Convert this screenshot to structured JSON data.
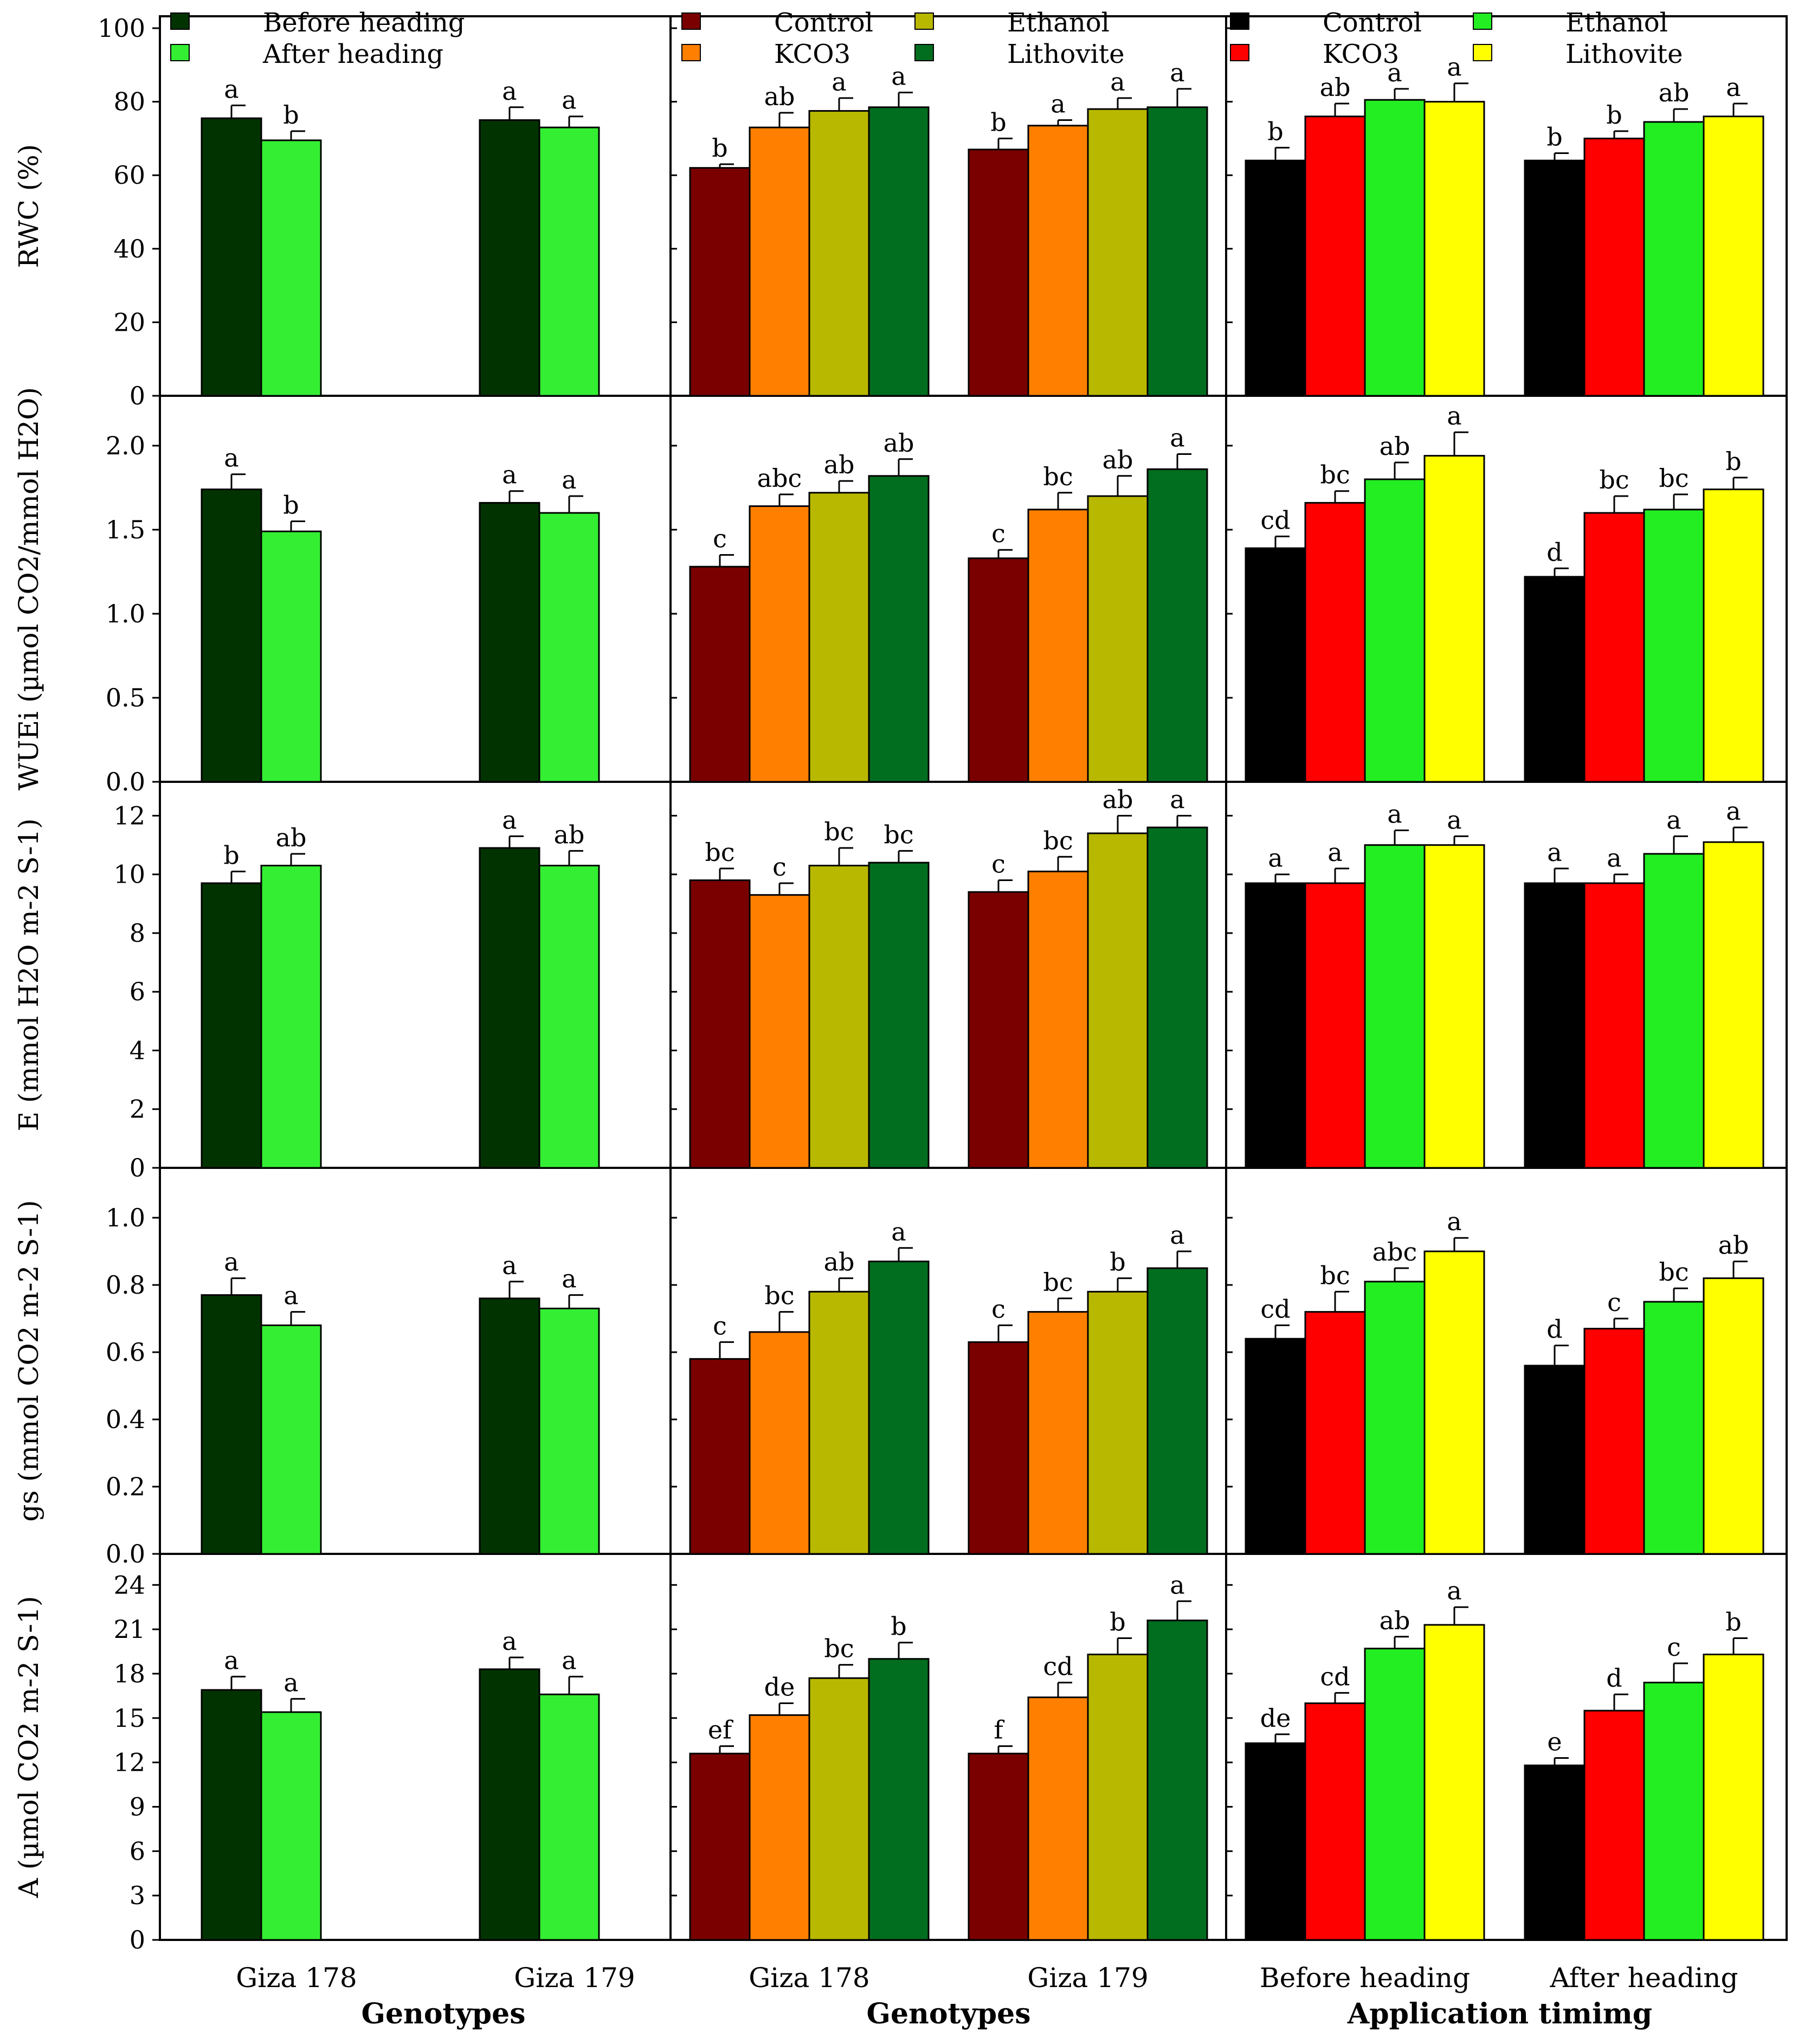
{
  "colors": {
    "before_heading": "#003300",
    "after_heading": "#33ee33",
    "trt_control": "#7a0000",
    "trt_kco3": "#ff8000",
    "trt_ethanol": "#b8b800",
    "trt_lithovite": "#006e1e",
    "time_control": "#000000",
    "time_kco3": "#ff0000",
    "time_ethanol": "#22ee22",
    "time_lithovite": "#ffff00"
  },
  "legends": {
    "col1": [
      "Before heading",
      "After heading"
    ],
    "col2": [
      "Control",
      "Ethanol",
      "KCO3",
      "Lithovite"
    ],
    "col3": [
      "Control",
      "Ethanol",
      "KCO3",
      "Lithovite"
    ]
  },
  "x_axis": {
    "col1": {
      "categories": [
        "Giza 178",
        "Giza 179"
      ],
      "title": "Genotypes"
    },
    "col2": {
      "categories": [
        "Giza 178",
        "Giza 179"
      ],
      "title": "Genotypes"
    },
    "col3": {
      "categories": [
        "Before heading",
        "After heading"
      ],
      "title": "Application timimg"
    }
  },
  "chart_data": [
    {
      "type": "bar",
      "metric": "RWC",
      "ylabel": "RWC (%)",
      "ylim": [
        0,
        100
      ],
      "yticks": [
        "0",
        "20",
        "40",
        "60",
        "80",
        "100"
      ],
      "groups": [
        {
          "x": "Giza 178",
          "values": [
            75.5,
            69.5
          ],
          "errors": [
            3.5,
            2.5
          ],
          "letters": [
            "a",
            "b"
          ]
        },
        {
          "x": "Giza 179",
          "values": [
            75.0,
            73.0
          ],
          "errors": [
            3.5,
            3.0
          ],
          "letters": [
            "a",
            "a"
          ]
        },
        {
          "x": "Giza 178",
          "values": [
            62.0,
            73.0,
            77.5,
            78.5
          ],
          "errors": [
            1.0,
            4.0,
            3.5,
            4.0
          ],
          "letters": [
            "b",
            "ab",
            "a",
            "a"
          ]
        },
        {
          "x": "Giza 179",
          "values": [
            67.0,
            73.5,
            78.0,
            78.5
          ],
          "errors": [
            3.0,
            1.5,
            3.0,
            5.0
          ],
          "letters": [
            "b",
            "a",
            "a",
            "a"
          ]
        },
        {
          "x": "Before heading",
          "values": [
            64.0,
            76.0,
            80.5,
            80.0
          ],
          "errors": [
            3.5,
            3.5,
            3.0,
            5.0
          ],
          "letters": [
            "b",
            "ab",
            "a",
            "a"
          ]
        },
        {
          "x": "After heading",
          "values": [
            64.0,
            70.0,
            74.5,
            76.0
          ],
          "errors": [
            2.0,
            2.0,
            3.5,
            3.5
          ],
          "letters": [
            "b",
            "b",
            "ab",
            "a"
          ]
        }
      ]
    },
    {
      "type": "bar",
      "metric": "WUEi",
      "ylabel": "WUEi (µmol CO2/mmol H2O)",
      "ylim": [
        0,
        2.2
      ],
      "yticks": [
        "0.0",
        "0.5",
        "1.0",
        "1.5",
        "2.0"
      ],
      "groups": [
        {
          "x": "Giza 178",
          "values": [
            1.74,
            1.49
          ],
          "errors": [
            0.09,
            0.06
          ],
          "letters": [
            "a",
            "b"
          ]
        },
        {
          "x": "Giza 179",
          "values": [
            1.66,
            1.6
          ],
          "errors": [
            0.07,
            0.1
          ],
          "letters": [
            "a",
            "a"
          ]
        },
        {
          "x": "Giza 178",
          "values": [
            1.28,
            1.64,
            1.72,
            1.82
          ],
          "errors": [
            0.07,
            0.07,
            0.07,
            0.1
          ],
          "letters": [
            "c",
            "abc",
            "ab",
            "ab"
          ]
        },
        {
          "x": "Giza 179",
          "values": [
            1.33,
            1.62,
            1.7,
            1.86
          ],
          "errors": [
            0.05,
            0.1,
            0.12,
            0.09
          ],
          "letters": [
            "c",
            "bc",
            "ab",
            "a"
          ]
        },
        {
          "x": "Before heading",
          "values": [
            1.39,
            1.66,
            1.8,
            1.94
          ],
          "errors": [
            0.07,
            0.07,
            0.1,
            0.14
          ],
          "letters": [
            "cd",
            "bc",
            "ab",
            "a"
          ]
        },
        {
          "x": "After heading",
          "values": [
            1.22,
            1.6,
            1.62,
            1.74
          ],
          "errors": [
            0.05,
            0.1,
            0.09,
            0.07
          ],
          "letters": [
            "d",
            "bc",
            "bc",
            "b"
          ]
        }
      ]
    },
    {
      "type": "bar",
      "metric": "E",
      "ylabel": "E (mmol H2O m-2 S-1)",
      "ylim": [
        0,
        12.6
      ],
      "yticks": [
        "0",
        "2",
        "4",
        "6",
        "8",
        "10",
        "12"
      ],
      "groups": [
        {
          "x": "Giza 178",
          "values": [
            9.7,
            10.3
          ],
          "errors": [
            0.4,
            0.4
          ],
          "letters": [
            "b",
            "ab"
          ]
        },
        {
          "x": "Giza 179",
          "values": [
            10.9,
            10.3
          ],
          "errors": [
            0.4,
            0.5
          ],
          "letters": [
            "a",
            "ab"
          ]
        },
        {
          "x": "Giza 178",
          "values": [
            9.8,
            9.3,
            10.3,
            10.4
          ],
          "errors": [
            0.4,
            0.4,
            0.6,
            0.4
          ],
          "letters": [
            "bc",
            "c",
            "bc",
            "bc"
          ]
        },
        {
          "x": "Giza 179",
          "values": [
            9.4,
            10.1,
            11.4,
            11.6
          ],
          "errors": [
            0.4,
            0.5,
            0.6,
            0.4
          ],
          "letters": [
            "c",
            "bc",
            "ab",
            "a"
          ]
        },
        {
          "x": "Before heading",
          "values": [
            9.7,
            9.7,
            11.0,
            11.0
          ],
          "errors": [
            0.3,
            0.5,
            0.5,
            0.3
          ],
          "letters": [
            "a",
            "a",
            "a",
            "a"
          ]
        },
        {
          "x": "After heading",
          "values": [
            9.7,
            9.7,
            10.7,
            11.1
          ],
          "errors": [
            0.5,
            0.3,
            0.6,
            0.5
          ],
          "letters": [
            "a",
            "a",
            "a",
            "a"
          ]
        }
      ]
    },
    {
      "type": "bar",
      "metric": "gs",
      "ylabel": "gs (mmol CO2 m-2 S-1)",
      "ylim": [
        0,
        1.1
      ],
      "yticks": [
        "0.0",
        "0.2",
        "0.4",
        "0.6",
        "0.8",
        "1.0"
      ],
      "groups": [
        {
          "x": "Giza 178",
          "values": [
            0.77,
            0.68
          ],
          "errors": [
            0.05,
            0.04
          ],
          "letters": [
            "a",
            "a"
          ]
        },
        {
          "x": "Giza 179",
          "values": [
            0.76,
            0.73
          ],
          "errors": [
            0.05,
            0.04
          ],
          "letters": [
            "a",
            "a"
          ]
        },
        {
          "x": "Giza 178",
          "values": [
            0.58,
            0.66,
            0.78,
            0.87
          ],
          "errors": [
            0.05,
            0.06,
            0.04,
            0.04
          ],
          "letters": [
            "c",
            "bc",
            "ab",
            "a"
          ]
        },
        {
          "x": "Giza 179",
          "values": [
            0.63,
            0.72,
            0.78,
            0.85
          ],
          "errors": [
            0.05,
            0.04,
            0.04,
            0.05
          ],
          "letters": [
            "c",
            "bc",
            "b",
            "a"
          ]
        },
        {
          "x": "Before heading",
          "values": [
            0.64,
            0.72,
            0.81,
            0.9
          ],
          "errors": [
            0.04,
            0.06,
            0.04,
            0.04
          ],
          "letters": [
            "cd",
            "bc",
            "abc",
            "a"
          ]
        },
        {
          "x": "After heading",
          "values": [
            0.56,
            0.67,
            0.75,
            0.82
          ],
          "errors": [
            0.06,
            0.03,
            0.04,
            0.05
          ],
          "letters": [
            "d",
            "c",
            "bc",
            "ab"
          ]
        }
      ]
    },
    {
      "type": "bar",
      "metric": "A",
      "ylabel": "A (µmol CO2 m-2 S-1)",
      "ylim": [
        0,
        25
      ],
      "yticks": [
        "0",
        "3",
        "6",
        "9",
        "12",
        "15",
        "18",
        "21",
        "24"
      ],
      "groups": [
        {
          "x": "Giza 178",
          "values": [
            16.9,
            15.4
          ],
          "errors": [
            0.9,
            0.9
          ],
          "letters": [
            "a",
            "a"
          ]
        },
        {
          "x": "Giza 179",
          "values": [
            18.3,
            16.6
          ],
          "errors": [
            0.8,
            1.2
          ],
          "letters": [
            "a",
            "a"
          ]
        },
        {
          "x": "Giza 178",
          "values": [
            12.6,
            15.2,
            17.7,
            19.0
          ],
          "errors": [
            0.5,
            0.8,
            0.9,
            1.1
          ],
          "letters": [
            "ef",
            "de",
            "bc",
            "b"
          ]
        },
        {
          "x": "Giza 179",
          "values": [
            12.6,
            16.4,
            19.3,
            21.6
          ],
          "errors": [
            0.5,
            1.0,
            1.1,
            1.3
          ],
          "letters": [
            "f",
            "cd",
            "b",
            "a"
          ]
        },
        {
          "x": "Before heading",
          "values": [
            13.3,
            16.0,
            19.7,
            21.3
          ],
          "errors": [
            0.6,
            0.7,
            0.8,
            1.2
          ],
          "letters": [
            "de",
            "cd",
            "ab",
            "a"
          ]
        },
        {
          "x": "After heading",
          "values": [
            11.8,
            15.5,
            17.4,
            19.3
          ],
          "errors": [
            0.5,
            1.1,
            1.3,
            1.1
          ],
          "letters": [
            "e",
            "d",
            "c",
            "b"
          ]
        }
      ]
    }
  ]
}
